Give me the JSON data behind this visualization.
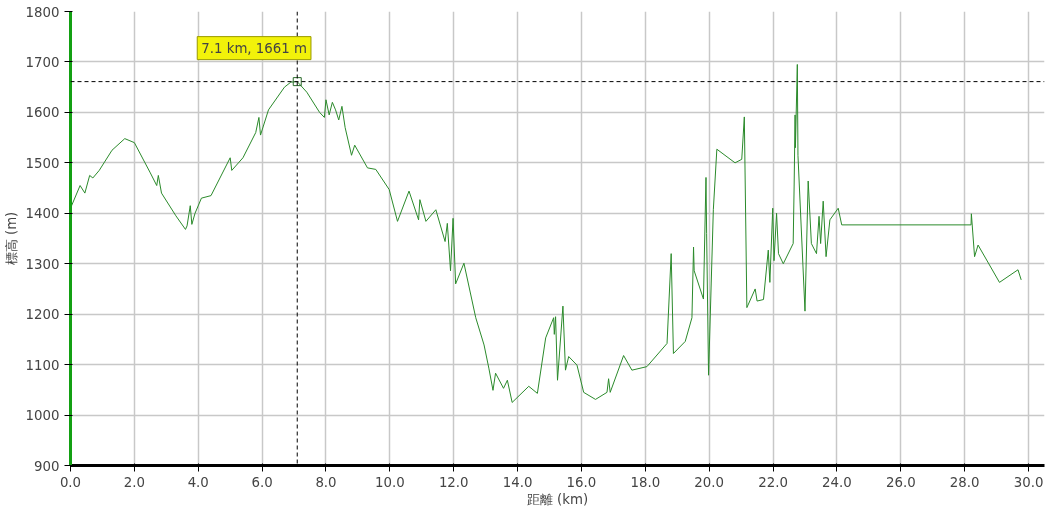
{
  "chart_data": {
    "type": "line",
    "xlabel": "距離 (km)",
    "ylabel": "標高 (m)",
    "xlim": [
      0,
      30.5
    ],
    "ylim": [
      900,
      1800
    ],
    "xticks": [
      {
        "value": 0,
        "label": "0.0"
      },
      {
        "value": 2,
        "label": "2.0"
      },
      {
        "value": 4,
        "label": "4.0"
      },
      {
        "value": 6,
        "label": "6.0"
      },
      {
        "value": 8,
        "label": "8.0"
      },
      {
        "value": 10,
        "label": "10.0"
      },
      {
        "value": 12,
        "label": "12.0"
      },
      {
        "value": 14,
        "label": "14.0"
      },
      {
        "value": 16,
        "label": "16.0"
      },
      {
        "value": 18,
        "label": "18.0"
      },
      {
        "value": 20,
        "label": "20.0"
      },
      {
        "value": 22,
        "label": "22.0"
      },
      {
        "value": 24,
        "label": "24.0"
      },
      {
        "value": 26,
        "label": "26.0"
      },
      {
        "value": 28,
        "label": "28.0"
      },
      {
        "value": 30,
        "label": "30.0"
      }
    ],
    "yticks": [
      900,
      1000,
      1100,
      1200,
      1300,
      1400,
      1500,
      1600,
      1700,
      1800
    ],
    "grid": true,
    "marker": "none",
    "line_style": "solid",
    "series": [
      {
        "color": "#2b8a2b",
        "x": [
          0.0,
          0.3,
          0.45,
          0.6,
          0.7,
          0.9,
          1.3,
          1.7,
          2.0,
          2.5,
          2.7,
          2.75,
          2.85,
          3.3,
          3.6,
          3.65,
          3.75,
          3.8,
          3.9,
          4.1,
          4.4,
          4.6,
          5.0,
          5.05,
          5.4,
          5.8,
          5.9,
          5.95,
          6.2,
          6.7,
          6.9,
          7.1,
          7.4,
          7.8,
          7.95,
          8.0,
          8.1,
          8.2,
          8.3,
          8.4,
          8.5,
          8.6,
          8.8,
          8.9,
          9.3,
          9.56,
          9.98,
          10.24,
          10.6,
          10.9,
          10.94,
          11.13,
          11.44,
          11.73,
          11.8,
          11.9,
          11.98,
          12.06,
          12.32,
          12.69,
          12.95,
          13.1,
          13.23,
          13.31,
          13.56,
          13.68,
          13.83,
          14.35,
          14.62,
          14.88,
          15.13,
          15.15,
          15.19,
          15.25,
          15.42,
          15.5,
          15.6,
          15.86,
          16.07,
          16.44,
          16.8,
          16.85,
          16.9,
          17.32,
          17.58,
          18.05,
          18.68,
          18.81,
          18.88,
          19.25,
          19.46,
          19.51,
          19.53,
          19.82,
          19.9,
          19.92,
          19.98,
          20.13,
          20.24,
          20.81,
          21.02,
          21.1,
          21.18,
          21.44,
          21.5,
          21.7,
          21.85,
          21.9,
          21.99,
          22.03,
          22.11,
          22.17,
          22.32,
          22.63,
          22.66,
          22.69,
          22.7,
          22.76,
          22.78,
          23.0,
          23.1,
          23.2,
          23.36,
          23.44,
          23.49,
          23.57,
          23.66,
          23.78,
          24.04,
          24.15,
          28.2,
          28.21,
          28.31,
          28.42,
          29.09,
          29.67,
          29.77
        ],
        "values": [
          1410,
          1455,
          1440,
          1475,
          1470,
          1485,
          1525,
          1548,
          1540,
          1480,
          1455,
          1475,
          1440,
          1395,
          1368,
          1375,
          1415,
          1378,
          1400,
          1430,
          1435,
          1460,
          1510,
          1485,
          1510,
          1560,
          1590,
          1555,
          1605,
          1650,
          1660,
          1661,
          1640,
          1600,
          1590,
          1625,
          1595,
          1620,
          1605,
          1585,
          1612,
          1570,
          1515,
          1535,
          1490,
          1487,
          1447,
          1384,
          1444,
          1387,
          1427,
          1384,
          1407,
          1344,
          1380,
          1286,
          1390,
          1260,
          1301,
          1193,
          1139,
          1093,
          1049,
          1083,
          1053,
          1069,
          1025,
          1057,
          1043,
          1153,
          1193,
          1160,
          1195,
          1069,
          1216,
          1089,
          1116,
          1099,
          1045,
          1031,
          1045,
          1072,
          1045,
          1118,
          1089,
          1096,
          1142,
          1320,
          1122,
          1146,
          1193,
          1333,
          1286,
          1230,
          1471,
          1360,
          1079,
          1407,
          1527,
          1500,
          1507,
          1591,
          1213,
          1250,
          1226,
          1229,
          1327,
          1263,
          1410,
          1306,
          1400,
          1320,
          1300,
          1340,
          1454,
          1595,
          1530,
          1695,
          1515,
          1206,
          1464,
          1340,
          1320,
          1394,
          1340,
          1424,
          1314,
          1387,
          1410,
          1377,
          1377,
          1399,
          1314,
          1337,
          1263,
          1288,
          1268
        ]
      }
    ],
    "ref_lines": [
      {
        "axis": "x",
        "value": 7.1,
        "color": "#000000",
        "line_style": "dashed"
      },
      {
        "axis": "y",
        "value": 1661,
        "color": "#000000",
        "line_style": "dashed"
      }
    ],
    "annotations": [
      {
        "text": "7.1 km, 1661 m",
        "x": 7.1,
        "y": 1661
      }
    ]
  }
}
